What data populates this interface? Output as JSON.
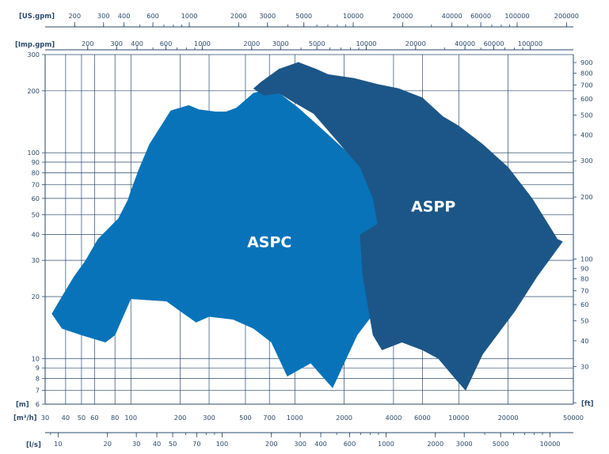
{
  "chart_data": {
    "type": "area",
    "title": "",
    "grid": true,
    "scale": "log",
    "axes": {
      "us_gpm": {
        "label": "[US.gpm]",
        "position": "top",
        "ticks": [
          "200",
          "300",
          "400",
          "600",
          "1000",
          "2000",
          "3000",
          "5000",
          "10000",
          "20000",
          "40000",
          "60000",
          "100000",
          "200000"
        ]
      },
      "imp_gpm": {
        "label": "[Imp.gpm]",
        "position": "top",
        "ticks": [
          "200",
          "300",
          "400",
          "600",
          "1000",
          "2000",
          "3000",
          "5000",
          "10000",
          "20000",
          "40000",
          "60000",
          "100000"
        ]
      },
      "m3h": {
        "label": "[m³/h]",
        "position": "bottom",
        "range": [
          30,
          50000
        ],
        "ticks": [
          "30",
          "40",
          "50",
          "60",
          "80",
          "100",
          "200",
          "300",
          "500",
          "700",
          "1000",
          "2000",
          "4000",
          "6000",
          "10000",
          "20000",
          "50000"
        ]
      },
      "ls": {
        "label": "[l/s]",
        "position": "bottom",
        "ticks": [
          "10",
          "20",
          "30",
          "40",
          "50",
          "70",
          "100",
          "200",
          "300",
          "400",
          "600",
          "1000",
          "2000",
          "3000",
          "5000",
          "10000"
        ]
      },
      "m": {
        "label": "[m]",
        "position": "left",
        "range": [
          6,
          300
        ],
        "ticks": [
          "6",
          "7",
          "8",
          "9",
          "10",
          "20",
          "30",
          "40",
          "50",
          "60",
          "70",
          "80",
          "90",
          "100",
          "200",
          "300"
        ]
      },
      "ft": {
        "label": "[ft]",
        "position": "right",
        "ticks": [
          "30",
          "40",
          "50",
          "60",
          "70",
          "80",
          "90",
          "100",
          "200",
          "300",
          "400",
          "500",
          "600",
          "700",
          "800",
          "900"
        ]
      }
    },
    "series": [
      {
        "name": "ASPC",
        "color": "#0873b9",
        "x_m3h": [
          33,
          38,
          45,
          53,
          63,
          84,
          96,
          100,
          112,
          130,
          175,
          225,
          260,
          330,
          380,
          440,
          560,
          720,
          800,
          1050,
          1500,
          2100,
          2800,
          3200,
          3400,
          3100,
          2400,
          1700,
          1250,
          900,
          720,
          560,
          420,
          300,
          250,
          200,
          165,
          100,
          88,
          80,
          70,
          50,
          38,
          33
        ],
        "y_m": [
          16.5,
          20,
          25,
          30,
          38,
          48,
          59,
          65,
          83,
          110,
          160,
          170,
          162,
          158,
          158,
          165,
          195,
          205,
          195,
          165,
          128,
          100,
          78,
          55,
          35,
          17,
          13,
          7.2,
          9.5,
          8.2,
          12,
          14,
          15.5,
          16,
          15,
          17,
          19,
          19.5,
          15.5,
          13,
          12,
          13,
          14,
          16.5
        ]
      },
      {
        "name": "ASPP",
        "color": "#1c5688",
        "x_m3h": [
          560,
          620,
          800,
          1050,
          1350,
          1600,
          2300,
          3200,
          4300,
          6000,
          8000,
          10000,
          14000,
          20000,
          28000,
          40000,
          43000,
          30000,
          22000,
          14000,
          11000,
          9500,
          7500,
          6000,
          4500,
          3400,
          3000,
          2600,
          2500,
          3200,
          3000,
          2500,
          1800,
          1300,
          1000,
          800,
          650,
          560
        ],
        "y_m": [
          205,
          220,
          255,
          275,
          255,
          240,
          230,
          215,
          205,
          185,
          150,
          135,
          110,
          85,
          60,
          38,
          37,
          25,
          17,
          10.5,
          7,
          8,
          10,
          11,
          12,
          11,
          13,
          25,
          40,
          45,
          60,
          85,
          115,
          155,
          175,
          195,
          190,
          205
        ]
      }
    ],
    "labels": [
      {
        "text": "ASPC",
        "x_m3h": 700,
        "y_m": 37
      },
      {
        "text": "ASPP",
        "x_m3h": 7000,
        "y_m": 55
      }
    ]
  }
}
